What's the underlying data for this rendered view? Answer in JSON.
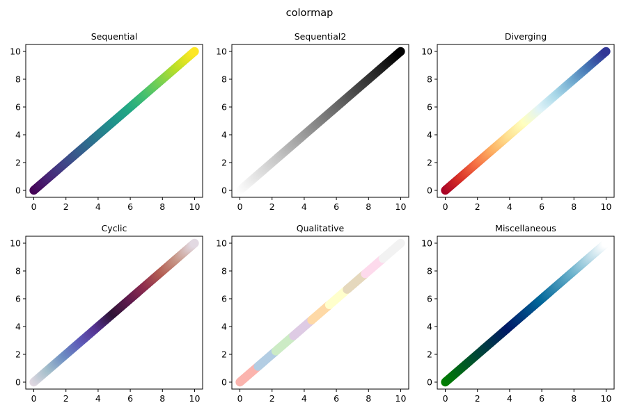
{
  "figure_title": "colormap",
  "chart_data": [
    {
      "type": "scatter",
      "title": "Sequential",
      "colormap": "viridis",
      "x_range": [
        0,
        10
      ],
      "y_range": [
        0,
        10
      ],
      "xlim": [
        -0.5,
        10.5
      ],
      "ylim": [
        -0.5,
        10.5
      ],
      "xticks": [
        0,
        2,
        4,
        6,
        8,
        10
      ],
      "yticks": [
        0,
        2,
        4,
        6,
        8,
        10
      ],
      "color_stops": [
        "#440154",
        "#482475",
        "#414487",
        "#355f8d",
        "#2a788e",
        "#21918c",
        "#22a884",
        "#44bf70",
        "#7ad151",
        "#bddf26",
        "#fde725"
      ],
      "discrete_colors": false,
      "grid": false,
      "legend": "none"
    },
    {
      "type": "scatter",
      "title": "Sequential2",
      "colormap": "Greys",
      "x_range": [
        0,
        10
      ],
      "y_range": [
        0,
        10
      ],
      "xlim": [
        -0.5,
        10.5
      ],
      "ylim": [
        -0.5,
        10.5
      ],
      "xticks": [
        0,
        2,
        4,
        6,
        8,
        10
      ],
      "yticks": [
        0,
        2,
        4,
        6,
        8,
        10
      ],
      "color_stops": [
        "#ffffff",
        "#e2e2e2",
        "#c6c6c6",
        "#a5a5a5",
        "#858585",
        "#676767",
        "#454545",
        "#252525",
        "#000000"
      ],
      "discrete_colors": false,
      "grid": false,
      "legend": "none"
    },
    {
      "type": "scatter",
      "title": "Diverging",
      "colormap": "RdYlBu",
      "x_range": [
        0,
        10
      ],
      "y_range": [
        0,
        10
      ],
      "xlim": [
        -0.5,
        10.5
      ],
      "ylim": [
        -0.5,
        10.5
      ],
      "xticks": [
        0,
        2,
        4,
        6,
        8,
        10
      ],
      "yticks": [
        0,
        2,
        4,
        6,
        8,
        10
      ],
      "color_stops": [
        "#a50026",
        "#d73027",
        "#f46d43",
        "#fdae61",
        "#fee090",
        "#ffffbf",
        "#e0f3f8",
        "#abd9e9",
        "#74add1",
        "#4575b4",
        "#313695"
      ],
      "discrete_colors": false,
      "grid": false,
      "legend": "none"
    },
    {
      "type": "scatter",
      "title": "Cyclic",
      "colormap": "twilight",
      "x_range": [
        0,
        10
      ],
      "y_range": [
        0,
        10
      ],
      "xlim": [
        -0.5,
        10.5
      ],
      "ylim": [
        -0.5,
        10.5
      ],
      "xticks": [
        0,
        2,
        4,
        6,
        8,
        10
      ],
      "yticks": [
        0,
        2,
        4,
        6,
        8,
        10
      ],
      "color_stops": [
        "#e2d9e2",
        "#a5bfcb",
        "#6d8dc3",
        "#5f5cb8",
        "#553290",
        "#2f1436",
        "#5d1a4d",
        "#8e2d4e",
        "#b35e53",
        "#c8998a",
        "#e2d9e2"
      ],
      "discrete_colors": false,
      "grid": false,
      "legend": "none"
    },
    {
      "type": "scatter",
      "title": "Qualitative",
      "colormap": "Pastel1",
      "x_range": [
        0,
        10
      ],
      "y_range": [
        0,
        10
      ],
      "xlim": [
        -0.5,
        10.5
      ],
      "ylim": [
        -0.5,
        10.5
      ],
      "xticks": [
        0,
        2,
        4,
        6,
        8,
        10
      ],
      "yticks": [
        0,
        2,
        4,
        6,
        8,
        10
      ],
      "color_stops": [
        "#fbb4ae",
        "#b3cde3",
        "#ccebc5",
        "#decbe4",
        "#fed9a6",
        "#ffffcc",
        "#e5d8bd",
        "#fddaec",
        "#f2f2f2"
      ],
      "discrete_colors": true,
      "grid": false,
      "legend": "none"
    },
    {
      "type": "scatter",
      "title": "Miscellaneous",
      "colormap": "ocean",
      "x_range": [
        0,
        10
      ],
      "y_range": [
        0,
        10
      ],
      "xlim": [
        -0.5,
        10.5
      ],
      "ylim": [
        -0.5,
        10.5
      ],
      "xticks": [
        0,
        2,
        4,
        6,
        8,
        10
      ],
      "yticks": [
        0,
        2,
        4,
        6,
        8,
        10
      ],
      "color_stops": [
        "#007f00",
        "#004c33",
        "#001966",
        "#006699",
        "#6cb2cc",
        "#ffffff"
      ],
      "discrete_colors": false,
      "grid": false,
      "legend": "none"
    }
  ]
}
